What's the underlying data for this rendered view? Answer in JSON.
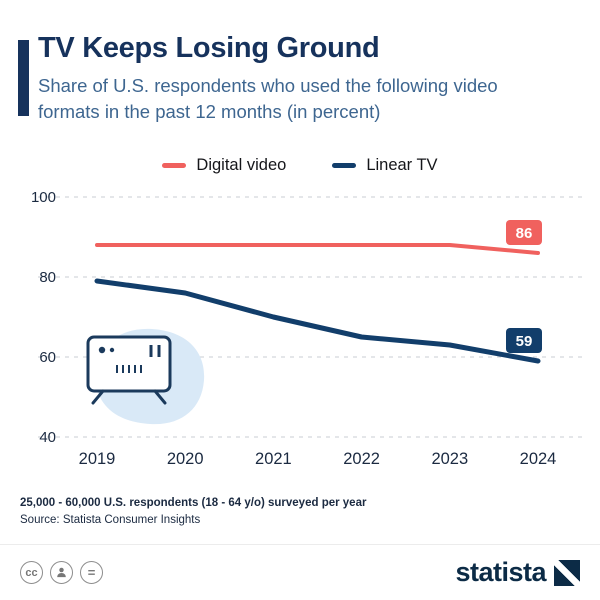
{
  "header": {
    "title": "TV Keeps Losing Ground",
    "subtitle": "Share of U.S. respondents who used the following video formats in the past 12 months (in percent)"
  },
  "legend": [
    {
      "label": "Digital video",
      "color": "#f0615e"
    },
    {
      "label": "Linear TV",
      "color": "#123e6b"
    }
  ],
  "chart_data": {
    "type": "line",
    "title": "TV Keeps Losing Ground",
    "x": [
      2019,
      2020,
      2021,
      2022,
      2023,
      2024
    ],
    "series": [
      {
        "name": "Digital video",
        "color": "#f0615e",
        "width": 4,
        "values": [
          88,
          88,
          88,
          88,
          88,
          86
        ],
        "end_label": "86"
      },
      {
        "name": "Linear TV",
        "color": "#123e6b",
        "width": 5,
        "values": [
          79,
          76,
          70,
          65,
          63,
          59
        ],
        "end_label": "59"
      }
    ],
    "ylim": [
      40,
      100
    ],
    "yticks": [
      100,
      80,
      60,
      40
    ],
    "grid": "horizontal-dashed",
    "legend_position": "top"
  },
  "footer": {
    "note": "25,000 - 60,000 U.S. respondents (18 - 64 y/o) surveyed per year",
    "source": "Source: Statista Consumer Insights"
  },
  "branding": {
    "logo_text": "statista",
    "license_icons": [
      "cc",
      "by",
      "nd"
    ]
  },
  "colors": {
    "title": "#16325c",
    "subtitle": "#3e6690",
    "accent_bar": "#16325c",
    "digital_video": "#f0615e",
    "linear_tv": "#123e6b",
    "background": "#ffffff"
  }
}
